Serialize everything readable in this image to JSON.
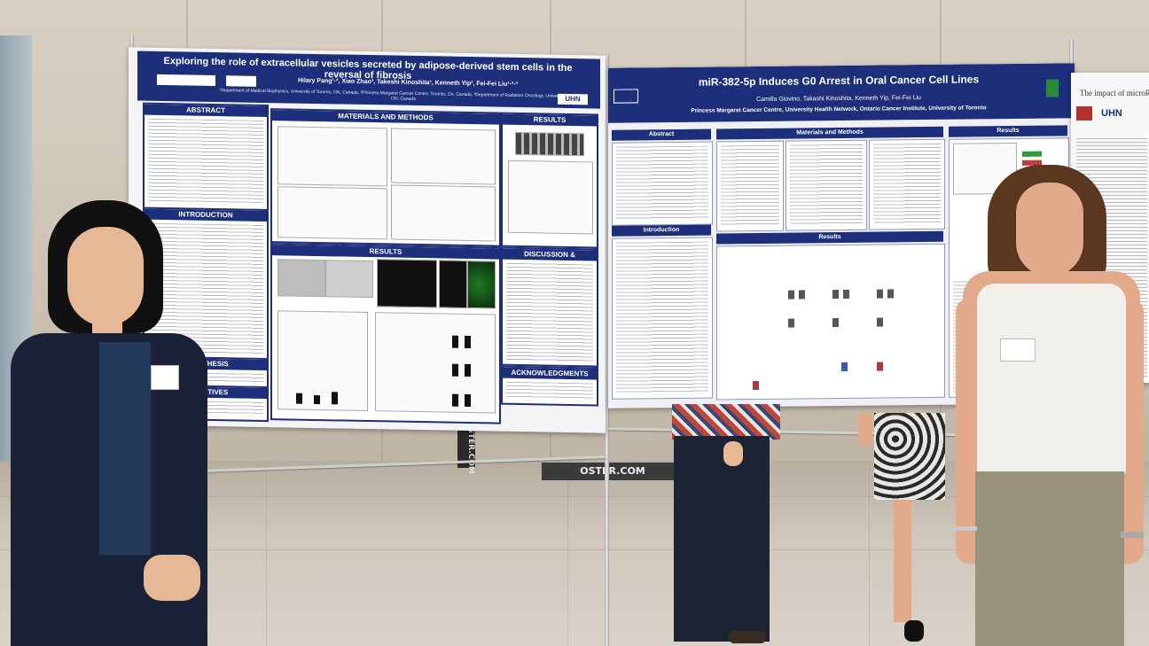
{
  "poster_left": {
    "title": "Exploring the role of extracellular vesicles secreted by adipose-derived stem cells in the reversal of fibrosis",
    "authors": "Hilary Pang¹·², Xiao Zhao³, Takeshi Kinoshita¹, Kenneth Yip², Fei-Fei Liu¹·²·³",
    "affiliations": "¹Department of Medical Biophysics, University of Toronto, ON, Canada, ²Princess Margaret Cancer Centre, Toronto, On, Canada, ³Department of Radiation Oncology, University of Toronto, ON, Canada",
    "logo_text": "UHN",
    "sections": {
      "abstract": "ABSTRACT",
      "introduction": "INTRODUCTION",
      "hypothesis": "HYPOTHESIS",
      "objectives": "OBJECTIVES",
      "materials_methods": "MATERIALS AND METHODS",
      "results_top": "RESULTS",
      "results_mid": "RESULTS",
      "discussion": "DISCUSSION & CONCLUSIONS",
      "acknowledgments": "ACKNOWLEDGMENTS"
    }
  },
  "poster_right": {
    "title": "miR-382-5p Induces G0 Arrest in Oral Cancer Cell Lines",
    "authors": "Camilla Giovino, Takashi Kinoshita, Kenneth Yip, Fei-Fei Liu",
    "affiliations": "Princess Margaret Cancer Centre, University Health Network, Ontario Cancer Institute, University of Toronto",
    "sections": {
      "abstract": "Abstract",
      "introduction": "Introduction",
      "materials_methods": "Materials and Methods",
      "results": "Results",
      "results_right": "Results"
    }
  },
  "poster_partial": {
    "title": "The impact of microRNA",
    "logo_text": "UHN"
  },
  "signage": {
    "banner_text": "TPOSTER.COM",
    "strip_text": "OSTER.COM"
  },
  "colors": {
    "poster_header": "#1d2f7a",
    "wall": "#d8d0c4",
    "floor": "#cfc7bc"
  }
}
